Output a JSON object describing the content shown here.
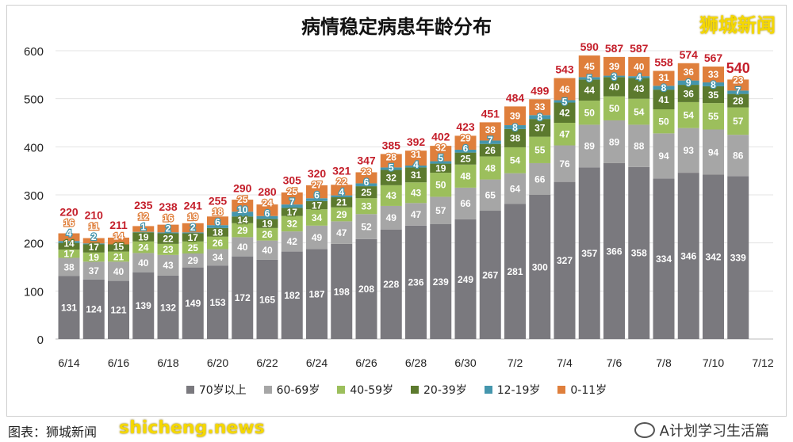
{
  "watermark_top": "狮城新闻",
  "credit": "图表：狮城新闻",
  "watermark_bottom": "shicheng.news",
  "wechat_account": "A计划学习生活篇",
  "chart_data": {
    "type": "stacked-bar",
    "title": "病情稳定病患年龄分布",
    "xlabel": "",
    "ylabel": "",
    "ylim": [
      0,
      600
    ],
    "yticks": [
      0,
      100,
      200,
      300,
      400,
      500,
      600
    ],
    "grid": true,
    "legend_position": "bottom",
    "xtick_labels": [
      "6/14",
      "6/16",
      "6/18",
      "6/20",
      "6/22",
      "6/24",
      "6/26",
      "6/28",
      "6/30",
      "7/2",
      "7/4",
      "7/6",
      "7/8",
      "7/10",
      "7/12"
    ],
    "categories": [
      "6/14",
      "6/15",
      "6/16",
      "6/17",
      "6/18",
      "6/19",
      "6/20",
      "6/21",
      "6/22",
      "6/23",
      "6/24",
      "6/25",
      "6/26",
      "6/27",
      "6/28",
      "6/29",
      "6/30",
      "7/1",
      "7/2",
      "7/3",
      "7/4",
      "7/5",
      "7/6",
      "7/7",
      "7/8",
      "7/9",
      "7/10",
      "7/11"
    ],
    "series": [
      {
        "name": "70岁以上",
        "color": "#7a797e",
        "values": [
          131,
          124,
          121,
          139,
          132,
          149,
          153,
          172,
          165,
          182,
          187,
          198,
          208,
          228,
          236,
          239,
          249,
          267,
          281,
          300,
          327,
          357,
          366,
          358,
          334,
          346,
          342,
          339
        ]
      },
      {
        "name": "60-69岁",
        "color": "#a6a6a6",
        "values": [
          38,
          37,
          40,
          40,
          43,
          29,
          34,
          40,
          40,
          42,
          49,
          47,
          52,
          49,
          47,
          57,
          66,
          65,
          64,
          66,
          76,
          89,
          89,
          88,
          94,
          93,
          94,
          86
        ]
      },
      {
        "name": "40-59岁",
        "color": "#9cbf5c",
        "values": [
          17,
          19,
          21,
          24,
          23,
          25,
          26,
          29,
          26,
          32,
          34,
          29,
          33,
          43,
          43,
          50,
          48,
          48,
          54,
          55,
          47,
          50,
          50,
          54,
          50,
          54,
          55,
          57
        ]
      },
      {
        "name": "20-39岁",
        "color": "#5c7a2e",
        "values": [
          14,
          17,
          15,
          19,
          22,
          17,
          18,
          14,
          19,
          17,
          17,
          21,
          25,
          32,
          31,
          19,
          25,
          26,
          38,
          37,
          42,
          44,
          40,
          43,
          41,
          36,
          35,
          28
        ]
      },
      {
        "name": "12-19岁",
        "color": "#4596ad",
        "values": [
          4,
          2,
          0,
          1,
          2,
          2,
          6,
          10,
          6,
          7,
          6,
          4,
          6,
          5,
          4,
          5,
          6,
          7,
          8,
          8,
          5,
          5,
          3,
          4,
          8,
          9,
          8,
          7
        ]
      },
      {
        "name": "0-11岁",
        "color": "#df7f3c",
        "values": [
          16,
          11,
          14,
          12,
          16,
          19,
          18,
          25,
          24,
          25,
          27,
          22,
          23,
          28,
          31,
          32,
          29,
          38,
          39,
          33,
          46,
          45,
          39,
          40,
          31,
          36,
          33,
          23
        ]
      }
    ],
    "totals": [
      220,
      210,
      211,
      235,
      238,
      241,
      255,
      290,
      280,
      305,
      320,
      321,
      347,
      385,
      392,
      402,
      423,
      451,
      484,
      499,
      543,
      590,
      587,
      587,
      558,
      574,
      567,
      540
    ],
    "total_label_color": "#c41e2a"
  }
}
